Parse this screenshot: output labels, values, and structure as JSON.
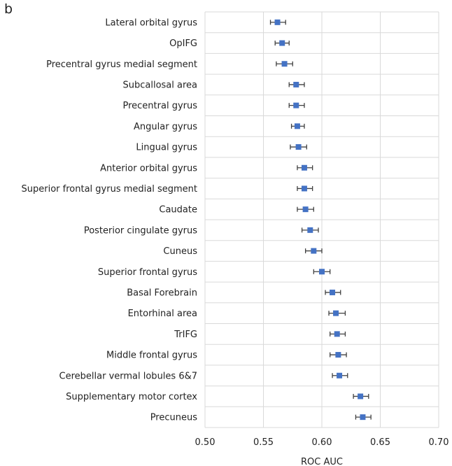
{
  "panel_label": "b",
  "chart_data": {
    "type": "scatter",
    "orientation": "horizontal",
    "error_bars": true,
    "categories": [
      "Lateral orbital gyrus",
      "OpIFG",
      "Precentral gyrus medial segment",
      "Subcallosal area",
      "Precentral gyrus",
      "Angular gyrus",
      "Lingual gyrus",
      "Anterior orbital gyrus",
      "Superior frontal gyrus medial segment",
      "Caudate",
      "Posterior cingulate gyrus",
      "Cuneus",
      "Superior frontal gyrus",
      "Basal Forebrain",
      "Entorhinal area",
      "TrIFG",
      "Middle frontal gyrus",
      "Cerebellar vermal lobules 6&7",
      "Supplementary motor cortex",
      "Precuneus"
    ],
    "values": [
      0.562,
      0.566,
      0.568,
      0.578,
      0.578,
      0.579,
      0.58,
      0.585,
      0.585,
      0.586,
      0.59,
      0.593,
      0.6,
      0.609,
      0.612,
      0.613,
      0.614,
      0.615,
      0.633,
      0.635
    ],
    "error_low": [
      0.556,
      0.56,
      0.561,
      0.572,
      0.572,
      0.574,
      0.573,
      0.579,
      0.579,
      0.579,
      0.583,
      0.586,
      0.593,
      0.603,
      0.606,
      0.607,
      0.607,
      0.609,
      0.627,
      0.629
    ],
    "error_high": [
      0.569,
      0.572,
      0.575,
      0.585,
      0.585,
      0.585,
      0.587,
      0.592,
      0.592,
      0.593,
      0.597,
      0.6,
      0.607,
      0.616,
      0.62,
      0.62,
      0.621,
      0.622,
      0.64,
      0.642
    ],
    "xlabel": "ROC AUC",
    "ylabel": "",
    "xlim": [
      0.5,
      0.7
    ],
    "xticks": [
      "0.50",
      "0.55",
      "0.60",
      "0.65",
      "0.70"
    ],
    "grid": "vertical",
    "marker_color": "#4472c4",
    "errorbar_color": "#404040",
    "grid_color": "#d9d9d9"
  }
}
